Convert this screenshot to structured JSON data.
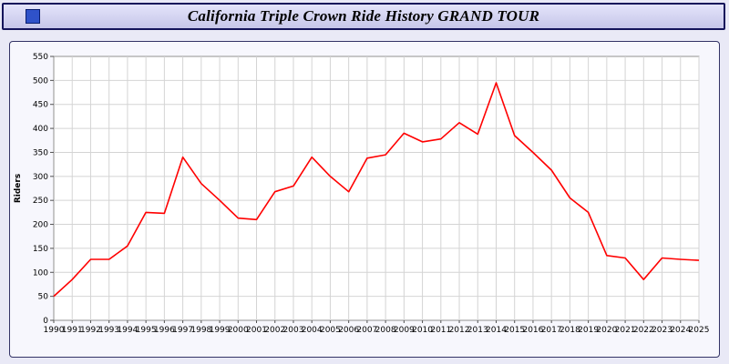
{
  "window": {
    "title": "California Triple Crown Ride History GRAND TOUR"
  },
  "colors": {
    "line": "#ff0000",
    "titlebar_border": "#14145a",
    "titlebar_fill": "#ccccee",
    "page_background": "#e9e9f6",
    "plot_background": "#ffffff",
    "gridline": "#d4d4d4",
    "window_icon_blue": "#2f52c9"
  },
  "chart_data": {
    "type": "line",
    "title": "California Triple Crown Ride History GRAND TOUR",
    "xlabel": "",
    "ylabel": "Riders",
    "ylim": [
      0,
      550
    ],
    "ytick_step": 50,
    "grid": true,
    "legend": "none",
    "line_color": "#ff0000",
    "categories": [
      1990,
      1991,
      1992,
      1993,
      1994,
      1995,
      1996,
      1997,
      1998,
      1999,
      2000,
      2001,
      2002,
      2003,
      2004,
      2005,
      2006,
      2007,
      2008,
      2009,
      2010,
      2011,
      2012,
      2013,
      2014,
      2015,
      2016,
      2017,
      2018,
      2019,
      2020,
      2021,
      2022,
      2023,
      2024,
      2025
    ],
    "values": [
      50,
      85,
      127,
      127,
      155,
      225,
      223,
      340,
      285,
      250,
      213,
      210,
      268,
      280,
      340,
      300,
      268,
      338,
      345,
      390,
      372,
      378,
      412,
      388,
      495,
      385,
      350,
      313,
      255,
      225,
      135,
      130,
      85,
      130,
      127,
      125
    ]
  }
}
